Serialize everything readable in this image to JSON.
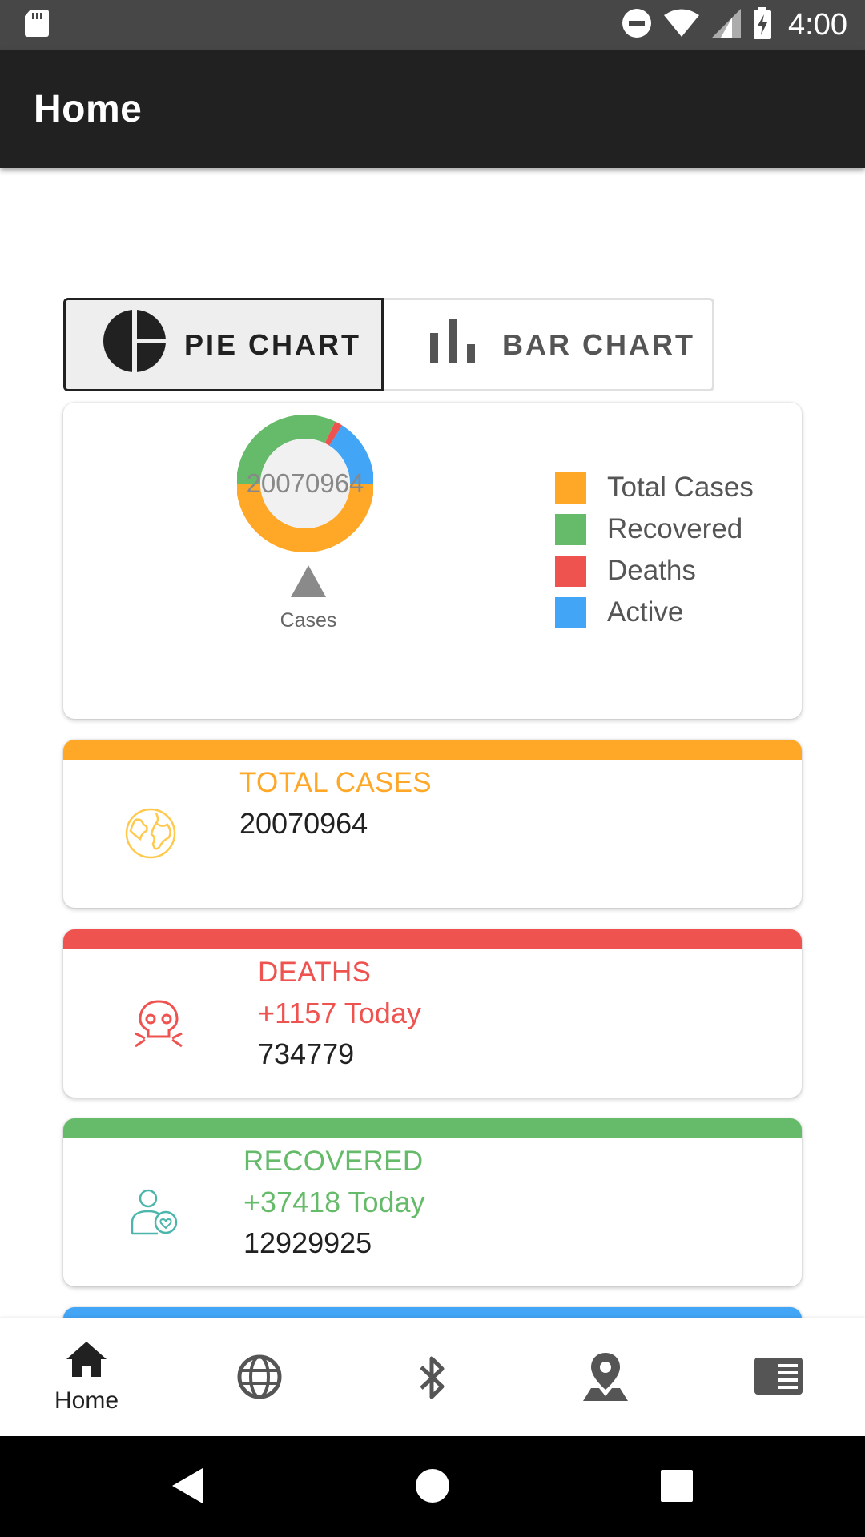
{
  "status_bar": {
    "time": "4:00",
    "icons": [
      "sd-card-icon",
      "do-not-disturb-icon",
      "wifi-icon",
      "signal-icon",
      "battery-charging-icon"
    ]
  },
  "app_bar": {
    "title": "Home"
  },
  "chart_toggle": {
    "pie_label": "PIE CHART",
    "bar_label": "BAR CHART",
    "selected": "pie"
  },
  "chart_data": {
    "type": "pie",
    "center_label": "20070964",
    "marker_label": "Cases",
    "slices": [
      {
        "name": "Total Cases",
        "value": 20070964,
        "color": "#FFA726"
      },
      {
        "name": "Recovered",
        "value": 12929925,
        "color": "#66BB6A"
      },
      {
        "name": "Deaths",
        "value": 734779,
        "color": "#EF5350"
      },
      {
        "name": "Active",
        "value": 6406260,
        "color": "#42A5F5"
      }
    ],
    "legend": [
      "Total Cases",
      "Recovered",
      "Deaths",
      "Active"
    ],
    "legend_position": "right"
  },
  "cards": {
    "total": {
      "title": "TOTAL CASES",
      "value": "20070964",
      "color": "#FFA726",
      "icon": "globe-icon"
    },
    "deaths": {
      "title": "DEATHS",
      "today": "+1157 Today",
      "value": "734779",
      "color": "#EF5350",
      "icon": "skull-icon"
    },
    "recovered": {
      "title": "RECOVERED",
      "today": "+37418 Today",
      "value": "12929925",
      "color": "#66BB6A",
      "icon": "recovered-person-icon"
    },
    "active": {
      "color": "#42A5F5"
    }
  },
  "bottom_nav": {
    "items": [
      {
        "label": "Home",
        "icon": "home-icon"
      },
      {
        "label": "",
        "icon": "globe-icon"
      },
      {
        "label": "",
        "icon": "bluetooth-icon"
      },
      {
        "label": "",
        "icon": "map-pin-icon"
      },
      {
        "label": "",
        "icon": "news-icon"
      }
    ]
  },
  "system_nav": {
    "icons": [
      "back-icon",
      "home-circle-icon",
      "recents-icon"
    ]
  }
}
